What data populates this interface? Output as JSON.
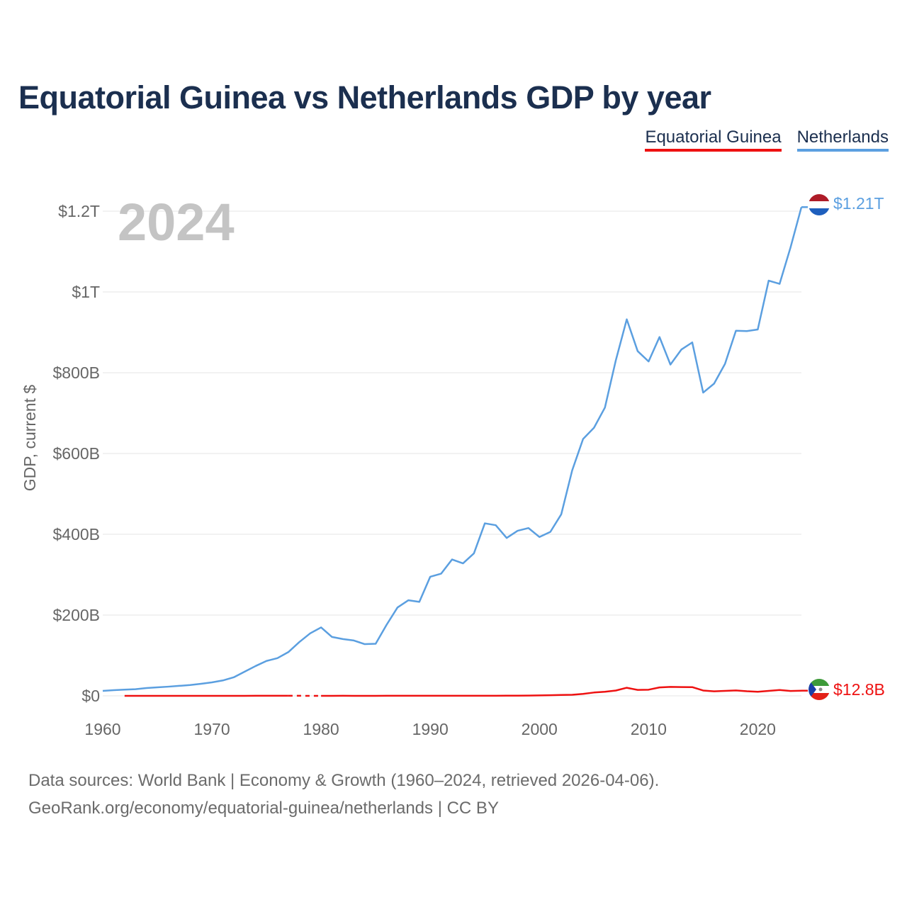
{
  "title": "Equatorial Guinea vs Netherlands GDP by year",
  "legend": [
    "Equatorial Guinea",
    "Netherlands"
  ],
  "year_watermark": "2024",
  "end_labels": {
    "netherlands": "$1.21T",
    "equatorial_guinea": "$12.8B"
  },
  "footer": {
    "line1": "Data sources: World Bank | Economy & Growth (1960–2024, retrieved 2026-04-06).",
    "line2": "GeoRank.org/economy/equatorial-guinea/netherlands | CC BY"
  },
  "colors": {
    "equatorial_guinea": "#ee1111",
    "netherlands": "#5b9fe0",
    "grid": "#e6e6e6",
    "axis_text": "#666666"
  },
  "icons": [
    "netherlands-flag-icon",
    "equatorial-guinea-flag-icon"
  ],
  "chart_data": {
    "type": "line",
    "title": "Equatorial Guinea vs Netherlands GDP by year",
    "xlabel": "",
    "ylabel": "GDP, current $",
    "xlim": [
      1960,
      2024
    ],
    "ylim": [
      0,
      1250000000000
    ],
    "x_ticks": [
      1960,
      1970,
      1980,
      1990,
      2000,
      2010,
      2020
    ],
    "x_tick_labels": [
      "1960",
      "1970",
      "1980",
      "1990",
      "2000",
      "2010",
      "2020"
    ],
    "y_ticks": [
      0,
      200000000000,
      400000000000,
      600000000000,
      800000000000,
      1000000000000,
      1200000000000
    ],
    "y_tick_labels": [
      "$0",
      "$200B",
      "$400B",
      "$600B",
      "$800B",
      "$1T",
      "$1.2T"
    ],
    "grid": true,
    "legend_position": "top-right",
    "x": [
      1960,
      1961,
      1962,
      1963,
      1964,
      1965,
      1966,
      1967,
      1968,
      1969,
      1970,
      1971,
      1972,
      1973,
      1974,
      1975,
      1976,
      1977,
      1978,
      1979,
      1980,
      1981,
      1982,
      1983,
      1984,
      1985,
      1986,
      1987,
      1988,
      1989,
      1990,
      1991,
      1992,
      1993,
      1994,
      1995,
      1996,
      1997,
      1998,
      1999,
      2000,
      2001,
      2002,
      2003,
      2004,
      2005,
      2006,
      2007,
      2008,
      2009,
      2010,
      2011,
      2012,
      2013,
      2014,
      2015,
      2016,
      2017,
      2018,
      2019,
      2020,
      2021,
      2022,
      2023,
      2024
    ],
    "series": [
      {
        "name": "Netherlands",
        "values": [
          12.3,
          14.1,
          15.4,
          16.5,
          19.2,
          21.1,
          22.7,
          24.7,
          26.8,
          29.8,
          33.3,
          38.1,
          45.9,
          59.9,
          73.8,
          86.4,
          93.3,
          108.3,
          133.0,
          154.7,
          169.4,
          145.8,
          140.6,
          137.0,
          128.0,
          128.9,
          175.9,
          218.8,
          236.7,
          232.6,
          294.9,
          302.6,
          337.7,
          328.0,
          352.8,
          427.1,
          422.5,
          390.9,
          408.6,
          415.4,
          393.3,
          405.9,
          449.5,
          558.1,
          636.0,
          663.8,
          713.7,
          830.9,
          932.2,
          853.4,
          827.9,
          888.4,
          820.2,
          857.3,
          875.0,
          750.8,
          773.0,
          822.0,
          904.0,
          903.0,
          907.0,
          1028.0,
          1020.0,
          1110.0,
          1210.0
        ],
        "unit": "billion USD"
      },
      {
        "name": "Equatorial Guinea",
        "values": [
          null,
          null,
          0.02,
          0.02,
          0.03,
          0.03,
          0.03,
          0.04,
          0.03,
          0.05,
          0.06,
          0.07,
          0.08,
          0.1,
          0.12,
          0.14,
          0.13,
          0.12,
          null,
          null,
          0.1,
          0.1,
          0.12,
          0.1,
          0.09,
          0.1,
          0.12,
          0.14,
          0.15,
          0.13,
          0.13,
          0.13,
          0.16,
          0.16,
          0.15,
          0.16,
          0.28,
          0.5,
          0.37,
          0.62,
          1.05,
          1.46,
          2.21,
          2.66,
          4.88,
          8.24,
          10.1,
          13.2,
          20.0,
          14.7,
          15.2,
          20.8,
          22.2,
          21.8,
          21.6,
          13.2,
          11.2,
          12.2,
          13.3,
          11.4,
          10.1,
          12.3,
          14.4,
          12.1,
          12.8
        ],
        "unit": "billion USD"
      }
    ]
  }
}
